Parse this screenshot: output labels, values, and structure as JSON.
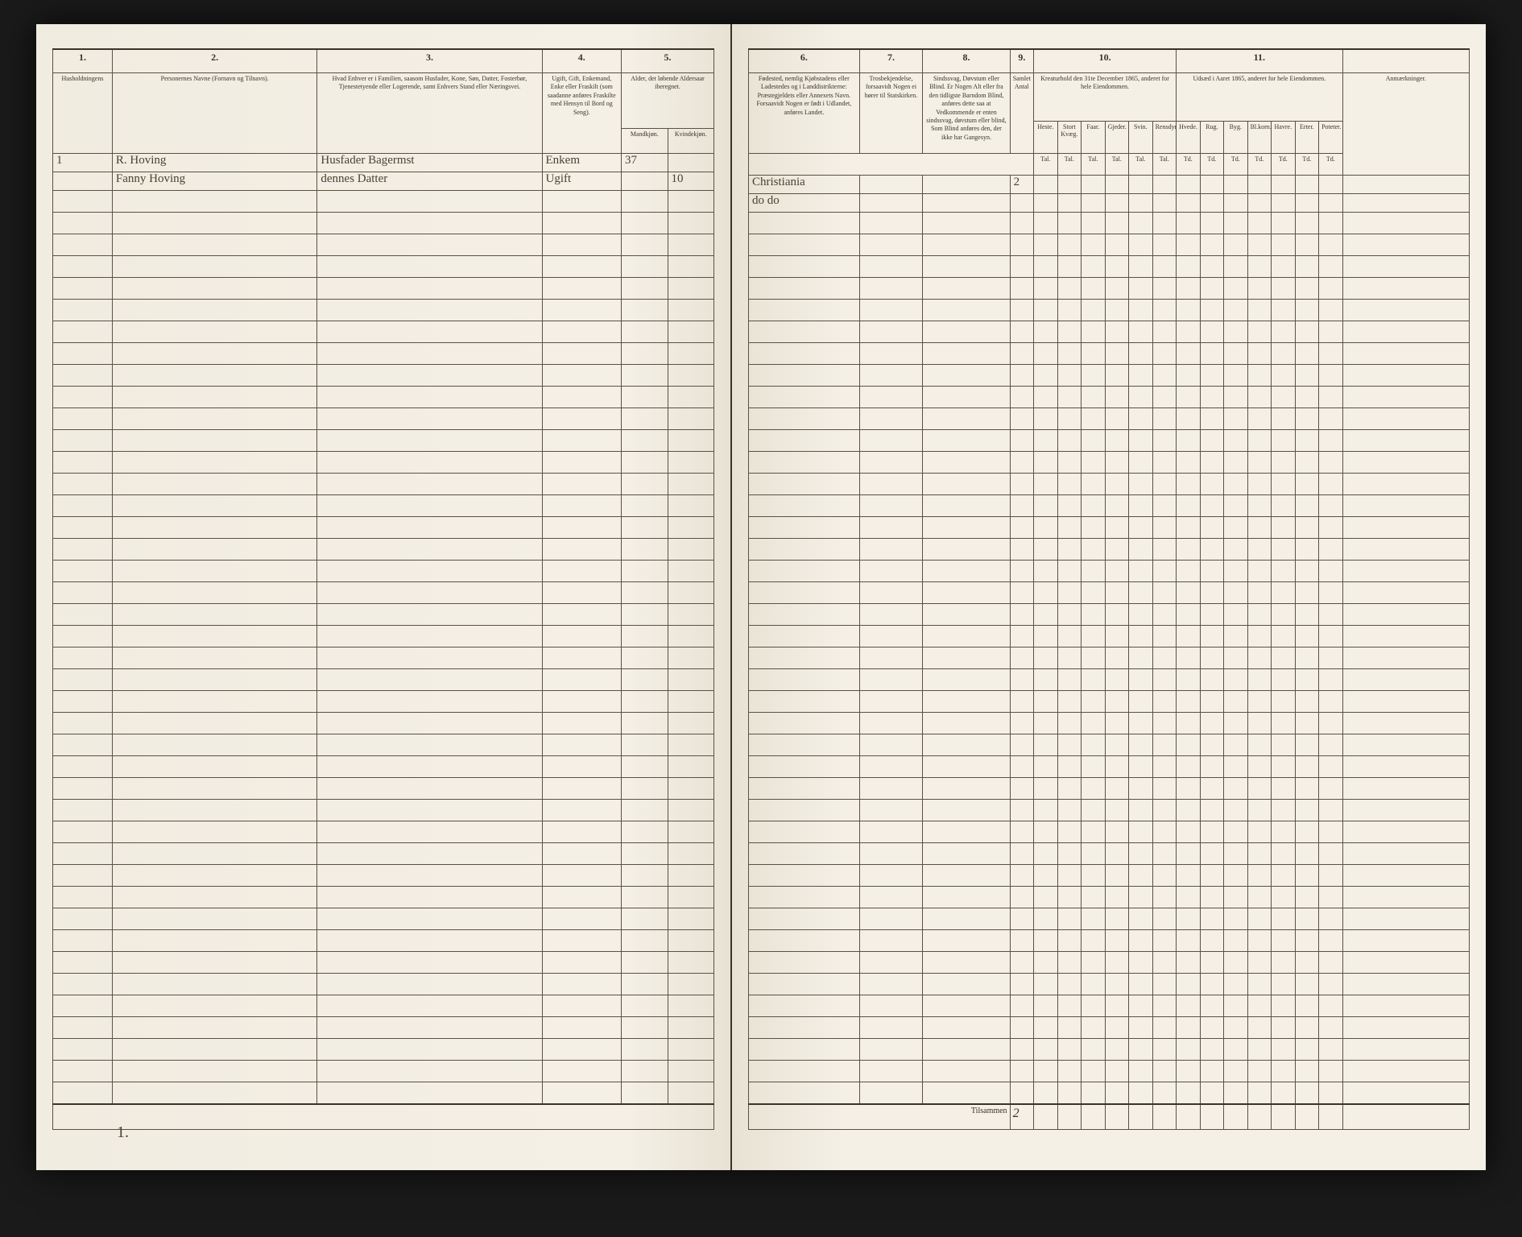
{
  "left_page": {
    "column_numbers": [
      "1.",
      "2.",
      "3.",
      "4.",
      "5."
    ],
    "headers": {
      "col1": "Husholdningens",
      "col2": "Personernes Navne (Fornavn og Tilnavn).",
      "col3": "Hvad Enhver er i Familien, saasom Husfader, Kone, Søn, Datter, Fosterbør, Tjenestetyende eller Logerende, samt Enhvers Stand eller Næringsvei.",
      "col4": "Ugift, Gift, Enkemand, Enke eller Fraskilt (som saadanne anføres Fraskilte med Hensyn til Bord og Seng).",
      "col5": "Alder, det løbende Aldersaar iberegnet.",
      "col5_sub1": "Mandkjøn.",
      "col5_sub2": "Kvindekjøn."
    },
    "rows": [
      {
        "num": "1",
        "name": "R. Hoving",
        "role": "Husfader Bagermst",
        "status": "Enkem",
        "age_m": "37",
        "age_f": ""
      },
      {
        "num": "",
        "name": "Fanny Hoving",
        "role": "dennes Datter",
        "status": "Ugift",
        "age_m": "",
        "age_f": "10"
      }
    ],
    "bottom_mark": "1."
  },
  "right_page": {
    "column_numbers": [
      "6.",
      "7.",
      "8.",
      "9.",
      "10.",
      "11."
    ],
    "headers": {
      "col6": "Fødested, nemlig Kjøbstadens eller Ladestedes og i Landdistrikterne: Præstegjeldets eller Annexets Navn. Forsaavidt Nogen er født i Udlandet, anføres Landet.",
      "col7": "Trosbekjendelse, forsaavidt Nogen ei hører til Statskirken.",
      "col8": "Sindssvag, Døvstum eller Blind. Er Nogen Alt eller fra den tidligste Barndom Blind, anføres dette saa at Vedkommende er enten sindssvag, døvstum eller blind, Som Blind anføres den, der ikke har Gangesyn.",
      "col9": "Samlet Antal",
      "col10": "Kreaturhold den 31te December 1865, anderet for hele Eiendommen.",
      "col10_subs": [
        "Heste.",
        "Stort Kvæg.",
        "Faar.",
        "Gjeder.",
        "Svin.",
        "Rensdyr."
      ],
      "col11": "Udsæd i Aaret 1865, anderet for hele Eiendommen.",
      "col11_subs": [
        "Hvede.",
        "Rug.",
        "Byg.",
        "Bl.korn.",
        "Havre.",
        "Erter.",
        "Poteter."
      ],
      "col_anm": "Anmærkninger."
    },
    "sub_labels": [
      "Tal.",
      "Tal.",
      "Tal.",
      "Tal.",
      "Tal.",
      "Tal.",
      "Td.",
      "Td.",
      "Td.",
      "Td.",
      "Td.",
      "Td.",
      "Td."
    ],
    "rows": [
      {
        "place": "Christiania",
        "rel": "",
        "cond": "",
        "count": "2"
      },
      {
        "place": "do  do",
        "rel": "",
        "cond": "",
        "count": ""
      }
    ],
    "footer_label": "Tilsammen",
    "footer_value": "2"
  },
  "style": {
    "page_bg": "#f4f0e6",
    "border_color": "#5a5240",
    "text_color": "#3a3428",
    "handwriting_color": "#4a4230"
  }
}
